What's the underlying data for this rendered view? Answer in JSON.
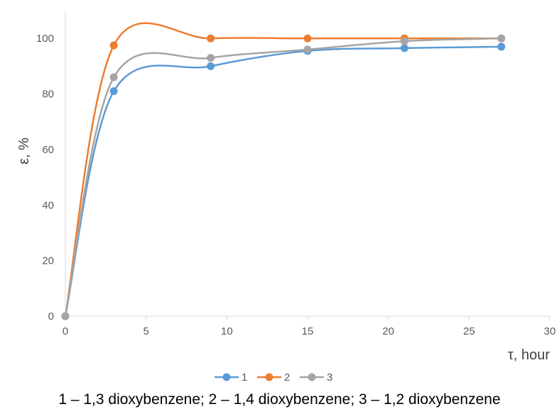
{
  "chart_data": {
    "type": "line",
    "smooth": true,
    "x": [
      0,
      3,
      9,
      15,
      21,
      27
    ],
    "series": [
      {
        "name": "1",
        "color": "#5B9BD5",
        "values": [
          0,
          81,
          90,
          95.5,
          96.5,
          97
        ]
      },
      {
        "name": "2",
        "color": "#ED7D31",
        "values": [
          0,
          97.5,
          100,
          100,
          100,
          100
        ]
      },
      {
        "name": "3",
        "color": "#A5A5A5",
        "values": [
          0,
          86,
          93,
          96,
          99,
          100
        ]
      }
    ],
    "xlim": [
      0,
      30
    ],
    "ylim": [
      0,
      110
    ],
    "xticks": [
      0,
      5,
      10,
      15,
      20,
      25,
      30
    ],
    "yticks": [
      0,
      20,
      40,
      60,
      80,
      100
    ],
    "xlabel": "τ, hour",
    "ylabel": "ε, %",
    "grid": false,
    "legend_position": "bottom"
  },
  "caption": "1 – 1,3 dioxybenzene; 2 – 1,4 dioxybenzene; 3 – 1,2 dioxybenzene"
}
